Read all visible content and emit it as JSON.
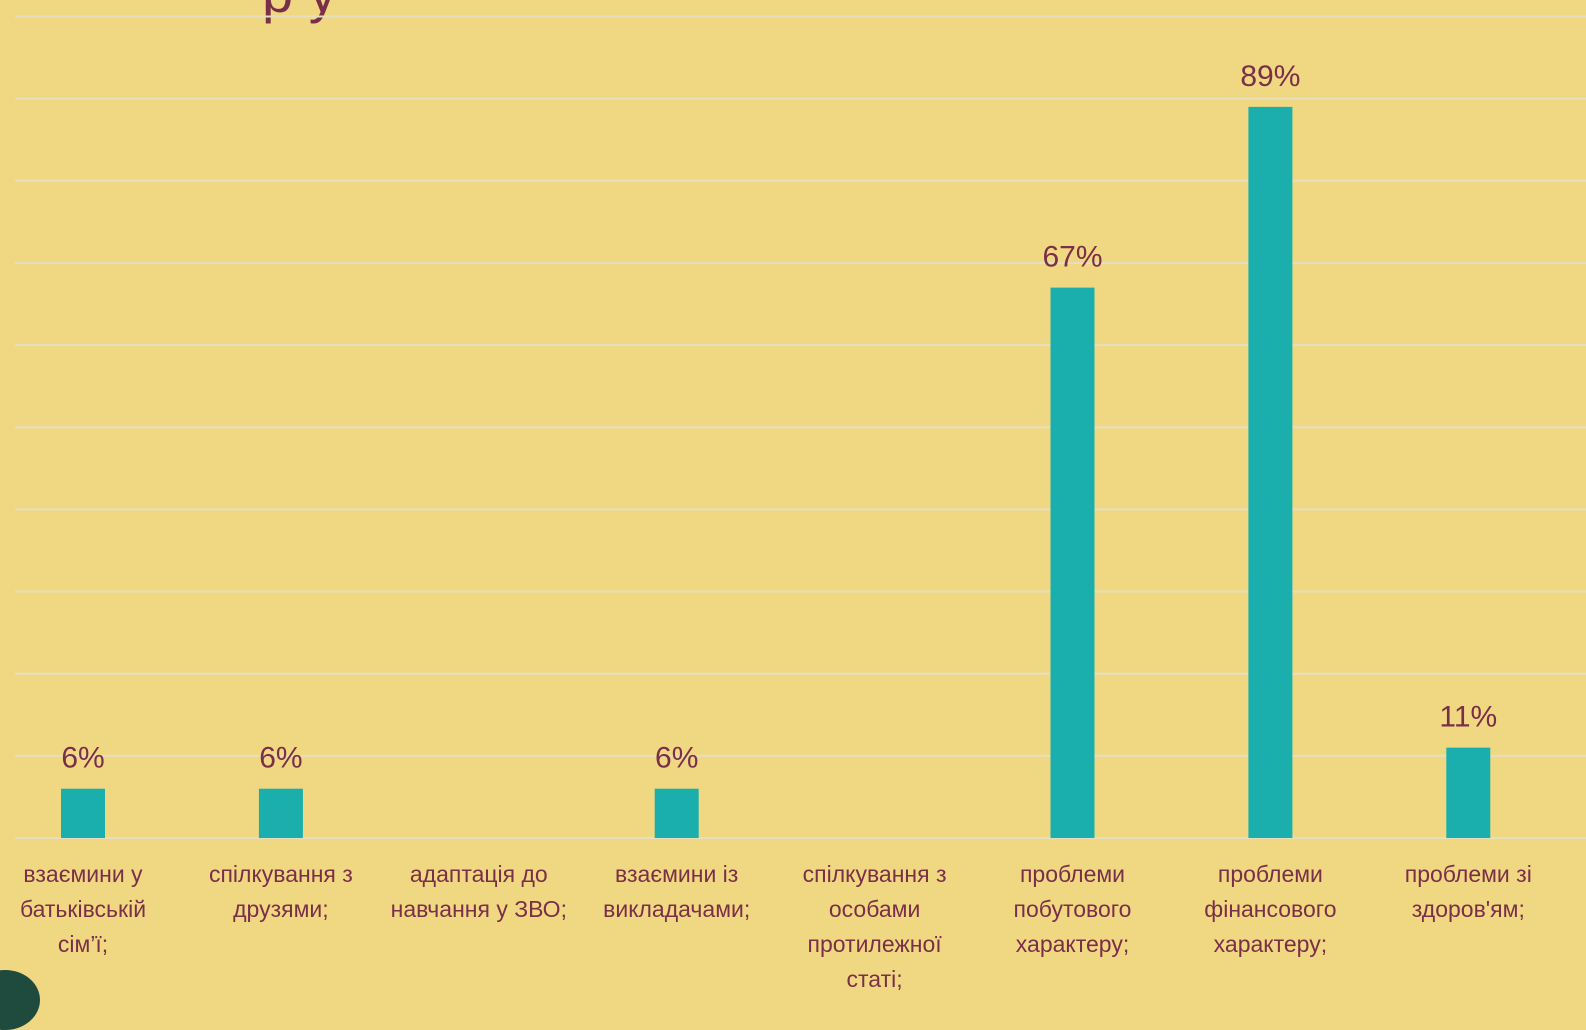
{
  "title_fragment": "р    у",
  "chart_data": {
    "type": "bar",
    "categories": [
      "взаємини у батьківській сім’ї;",
      "спілкування з друзями;",
      "адаптація до навчання у ЗВО;",
      "взаємини із викладачами;",
      "спілкування з особами протилежної статі;",
      "проблеми побутового характеру;",
      "проблеми фінансового характеру;",
      "проблеми зі здоров'ям;"
    ],
    "category_lines": [
      [
        "взаємини у",
        "батьківській",
        "сім’ї;"
      ],
      [
        "спілкування з",
        "друзями;"
      ],
      [
        "адаптація до",
        "навчання у ЗВО;"
      ],
      [
        "взаємини із",
        "викладачами;"
      ],
      [
        "спілкування з",
        "особами",
        "протилежної",
        "статі;"
      ],
      [
        "проблеми",
        "побутового",
        "характеру;"
      ],
      [
        "проблеми",
        "фінансового",
        "характеру;"
      ],
      [
        "проблеми зі",
        "здоров'ям;"
      ]
    ],
    "values": [
      6,
      6,
      0,
      6,
      0,
      67,
      89,
      11
    ],
    "data_labels": [
      "6%",
      "6%",
      "",
      "6%",
      "",
      "67%",
      "89%",
      "11%"
    ],
    "ylim": [
      0,
      100
    ],
    "grid": true,
    "colors": {
      "bar": "#1aafad",
      "gridline": "#e6dfbf",
      "text": "#7a2f48"
    }
  }
}
